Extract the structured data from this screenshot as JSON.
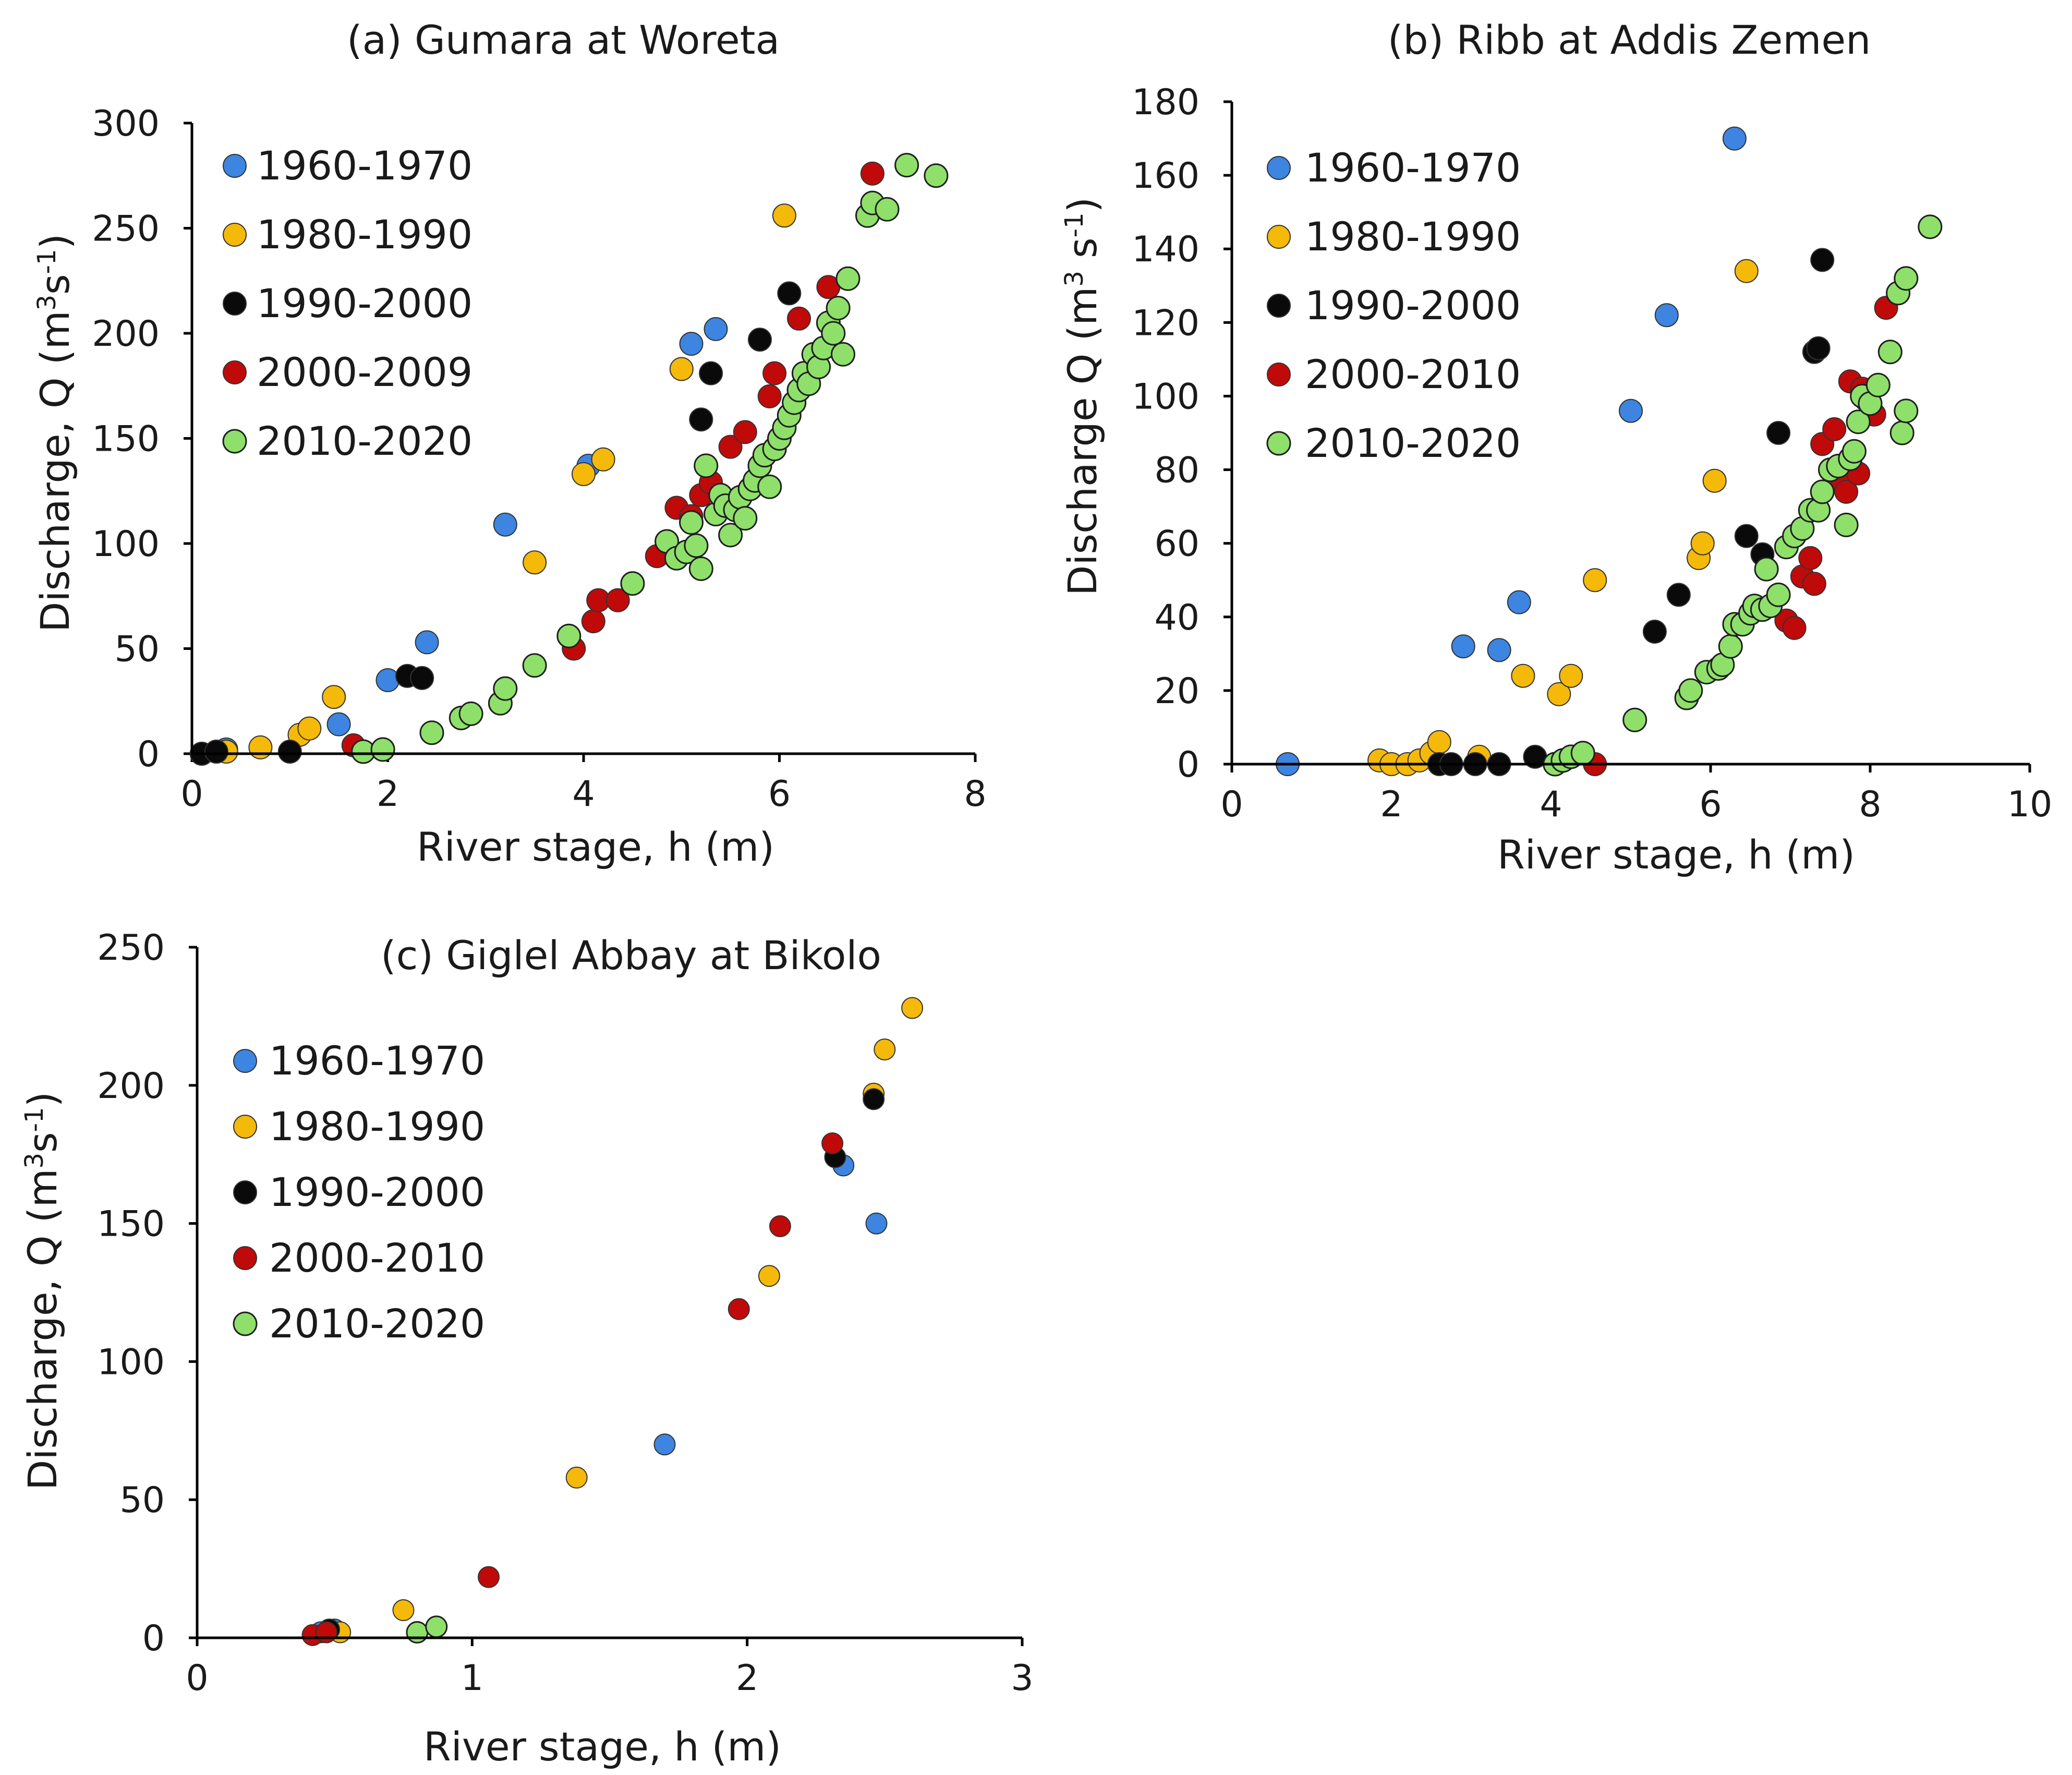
{
  "chart_data": [
    {
      "id": "a",
      "type": "scatter",
      "title": "(a) Gumara at Woreta",
      "xlabel": "River stage, h (m)",
      "ylabel": {
        "text": "Discharge, Q (m",
        "sup1": "3",
        "mid": "s",
        "sup2": "-1",
        "end": ")"
      },
      "xlim": [
        0,
        8
      ],
      "ylim": [
        0,
        300
      ],
      "xticks": [
        0,
        2,
        4,
        6,
        8
      ],
      "yticks": [
        0,
        50,
        100,
        150,
        200,
        250,
        300
      ],
      "legend_position": "top-left",
      "series": [
        {
          "name": "1960-1970",
          "color": "#3d85e0",
          "outlined": false,
          "points": [
            [
              0.1,
              0
            ],
            [
              0.25,
              1
            ],
            [
              0.35,
              2
            ],
            [
              1.5,
              14
            ],
            [
              2,
              35
            ],
            [
              2.4,
              53
            ],
            [
              3.2,
              109
            ],
            [
              4.05,
              137
            ],
            [
              5.1,
              195
            ],
            [
              5.35,
              202
            ]
          ]
        },
        {
          "name": "1980-1990",
          "color": "#f5b90a",
          "outlined": false,
          "points": [
            [
              0.35,
              1
            ],
            [
              0.7,
              3
            ],
            [
              1.1,
              9
            ],
            [
              1.2,
              12
            ],
            [
              1.45,
              27
            ],
            [
              3.5,
              91
            ],
            [
              4,
              133
            ],
            [
              4.2,
              140
            ],
            [
              5,
              183
            ],
            [
              6.05,
              256
            ]
          ]
        },
        {
          "name": "1990-2000",
          "color": "#0a0a0a",
          "outlined": false,
          "points": [
            [
              0.1,
              0
            ],
            [
              0.25,
              1
            ],
            [
              1,
              1
            ],
            [
              2.2,
              37
            ],
            [
              2.35,
              36
            ],
            [
              5.2,
              159
            ],
            [
              5.3,
              181
            ],
            [
              5.8,
              197
            ],
            [
              6.1,
              219
            ]
          ]
        },
        {
          "name": "2000-2009",
          "color": "#c00a0a",
          "outlined": false,
          "points": [
            [
              1.65,
              4
            ],
            [
              3.9,
              50
            ],
            [
              4.1,
              63
            ],
            [
              4.15,
              73
            ],
            [
              4.35,
              73
            ],
            [
              4.75,
              94
            ],
            [
              4.95,
              117
            ],
            [
              5.1,
              113
            ],
            [
              5.2,
              123
            ],
            [
              5.3,
              129
            ],
            [
              5.5,
              146
            ],
            [
              5.65,
              153
            ],
            [
              5.9,
              170
            ],
            [
              5.95,
              181
            ],
            [
              6.2,
              207
            ],
            [
              6.5,
              222
            ],
            [
              6.95,
              276
            ]
          ]
        },
        {
          "name": "2010-2020",
          "color": "#8ee06a",
          "outlined": true,
          "points": [
            [
              1.75,
              1
            ],
            [
              1.95,
              2
            ],
            [
              2.45,
              10
            ],
            [
              2.75,
              17
            ],
            [
              2.85,
              19
            ],
            [
              3.15,
              24
            ],
            [
              3.2,
              31
            ],
            [
              3.5,
              42
            ],
            [
              3.85,
              56
            ],
            [
              4.5,
              81
            ],
            [
              4.85,
              101
            ],
            [
              4.95,
              93
            ],
            [
              5.05,
              96
            ],
            [
              5.1,
              110
            ],
            [
              5.15,
              99
            ],
            [
              5.2,
              88
            ],
            [
              5.25,
              137
            ],
            [
              5.35,
              114
            ],
            [
              5.4,
              123
            ],
            [
              5.45,
              118
            ],
            [
              5.5,
              104
            ],
            [
              5.55,
              116
            ],
            [
              5.6,
              122
            ],
            [
              5.65,
              112
            ],
            [
              5.7,
              126
            ],
            [
              5.75,
              130
            ],
            [
              5.8,
              137
            ],
            [
              5.85,
              142
            ],
            [
              5.9,
              127
            ],
            [
              5.95,
              145
            ],
            [
              6.0,
              150
            ],
            [
              6.05,
              155
            ],
            [
              6.1,
              161
            ],
            [
              6.15,
              167
            ],
            [
              6.2,
              173
            ],
            [
              6.25,
              181
            ],
            [
              6.3,
              176
            ],
            [
              6.35,
              190
            ],
            [
              6.4,
              184
            ],
            [
              6.45,
              193
            ],
            [
              6.5,
              205
            ],
            [
              6.55,
              200
            ],
            [
              6.6,
              212
            ],
            [
              6.65,
              190
            ],
            [
              6.7,
              226
            ],
            [
              6.9,
              256
            ],
            [
              6.95,
              262
            ],
            [
              7.1,
              259
            ],
            [
              7.3,
              280
            ],
            [
              7.6,
              275
            ]
          ]
        }
      ]
    },
    {
      "id": "b",
      "type": "scatter",
      "title": "(b) Ribb at Addis Zemen",
      "xlabel": "River stage, h (m)",
      "ylabel": {
        "text": "Discharge Q (m",
        "sup1": "3",
        "mid": " s",
        "sup2": "-1",
        "end": ")"
      },
      "xlim": [
        0,
        10
      ],
      "ylim": [
        0,
        180
      ],
      "xticks": [
        0,
        2,
        4,
        6,
        8,
        10
      ],
      "yticks": [
        0,
        20,
        40,
        60,
        80,
        100,
        120,
        140,
        160,
        180
      ],
      "legend_position": "top-left",
      "series": [
        {
          "name": "1960-1970",
          "color": "#3d85e0",
          "outlined": false,
          "points": [
            [
              0.7,
              0
            ],
            [
              2.9,
              32
            ],
            [
              3.35,
              31
            ],
            [
              3.6,
              44
            ],
            [
              5,
              96
            ],
            [
              5.45,
              122
            ],
            [
              6.3,
              170
            ]
          ]
        },
        {
          "name": "1980-1990",
          "color": "#f5b90a",
          "outlined": false,
          "points": [
            [
              1.85,
              1
            ],
            [
              2,
              0
            ],
            [
              2.2,
              0
            ],
            [
              2.35,
              1
            ],
            [
              2.5,
              3
            ],
            [
              2.6,
              6
            ],
            [
              3.1,
              2
            ],
            [
              3.65,
              24
            ],
            [
              4.1,
              19
            ],
            [
              4.25,
              24
            ],
            [
              4.55,
              50
            ],
            [
              5.85,
              56
            ],
            [
              5.9,
              60
            ],
            [
              6.05,
              77
            ],
            [
              6.45,
              134
            ]
          ]
        },
        {
          "name": "1990-2000",
          "color": "#0a0a0a",
          "outlined": false,
          "points": [
            [
              2.6,
              0
            ],
            [
              2.75,
              0
            ],
            [
              3.05,
              0
            ],
            [
              3.35,
              0
            ],
            [
              3.8,
              2
            ],
            [
              5.3,
              36
            ],
            [
              5.6,
              46
            ],
            [
              6.45,
              62
            ],
            [
              6.65,
              57
            ],
            [
              6.85,
              90
            ],
            [
              7.3,
              112
            ],
            [
              7.35,
              113
            ],
            [
              7.4,
              137
            ]
          ]
        },
        {
          "name": "2000-2010",
          "color": "#c00a0a",
          "outlined": false,
          "points": [
            [
              4.55,
              0
            ],
            [
              6.95,
              39
            ],
            [
              7.05,
              37
            ],
            [
              7.15,
              51
            ],
            [
              7.25,
              56
            ],
            [
              7.3,
              49
            ],
            [
              7.4,
              87
            ],
            [
              7.55,
              91
            ],
            [
              7.65,
              77
            ],
            [
              7.7,
              74
            ],
            [
              7.75,
              104
            ],
            [
              7.85,
              79
            ],
            [
              7.9,
              102
            ],
            [
              7.95,
              99
            ],
            [
              8.05,
              95
            ],
            [
              8.2,
              124
            ]
          ]
        },
        {
          "name": "2010-2020",
          "color": "#8ee06a",
          "outlined": true,
          "points": [
            [
              4.05,
              0
            ],
            [
              4.15,
              1
            ],
            [
              4.25,
              2
            ],
            [
              4.4,
              3
            ],
            [
              5.05,
              12
            ],
            [
              5.7,
              18
            ],
            [
              5.75,
              20
            ],
            [
              5.95,
              25
            ],
            [
              6.1,
              26
            ],
            [
              6.15,
              27
            ],
            [
              6.25,
              32
            ],
            [
              6.3,
              38
            ],
            [
              6.4,
              38
            ],
            [
              6.5,
              41
            ],
            [
              6.55,
              43
            ],
            [
              6.65,
              42
            ],
            [
              6.7,
              53
            ],
            [
              6.75,
              43
            ],
            [
              6.85,
              46
            ],
            [
              6.95,
              59
            ],
            [
              7.05,
              62
            ],
            [
              7.15,
              64
            ],
            [
              7.25,
              69
            ],
            [
              7.35,
              69
            ],
            [
              7.4,
              74
            ],
            [
              7.5,
              80
            ],
            [
              7.6,
              81
            ],
            [
              7.7,
              65
            ],
            [
              7.75,
              83
            ],
            [
              7.8,
              85
            ],
            [
              7.85,
              93
            ],
            [
              7.9,
              100
            ],
            [
              8.0,
              98
            ],
            [
              8.1,
              103
            ],
            [
              8.25,
              112
            ],
            [
              8.35,
              128
            ],
            [
              8.4,
              90
            ],
            [
              8.45,
              96
            ],
            [
              8.45,
              132
            ],
            [
              8.75,
              146
            ]
          ]
        }
      ]
    },
    {
      "id": "c",
      "type": "scatter",
      "title": "(c) Giglel Abbay at Bikolo",
      "xlabel": "River stage, h (m)",
      "ylabel": {
        "text": "Discharge, Q (m",
        "sup1": "3",
        "mid": "s",
        "sup2": "-1",
        "end": ")"
      },
      "xlim": [
        0,
        3
      ],
      "ylim": [
        0,
        250
      ],
      "xticks": [
        0,
        1,
        2,
        3
      ],
      "yticks": [
        0,
        50,
        100,
        150,
        200,
        250
      ],
      "legend_position": "top-left",
      "series": [
        {
          "name": "1960-1970",
          "color": "#3d85e0",
          "outlined": false,
          "points": [
            [
              0.45,
              2
            ],
            [
              0.5,
              3
            ],
            [
              1.7,
              70
            ],
            [
              2.35,
              171
            ],
            [
              2.47,
              150
            ]
          ]
        },
        {
          "name": "1980-1990",
          "color": "#f5b90a",
          "outlined": false,
          "points": [
            [
              0.52,
              2
            ],
            [
              0.75,
              10
            ],
            [
              1.38,
              58
            ],
            [
              2.08,
              131
            ],
            [
              2.46,
              197
            ],
            [
              2.5,
              213
            ],
            [
              2.6,
              228
            ]
          ]
        },
        {
          "name": "1990-2000",
          "color": "#0a0a0a",
          "outlined": false,
          "points": [
            [
              0.48,
              3
            ],
            [
              2.32,
              174
            ],
            [
              2.46,
              195
            ]
          ]
        },
        {
          "name": "2000-2010",
          "color": "#c00a0a",
          "outlined": false,
          "points": [
            [
              0.42,
              1
            ],
            [
              0.47,
              2
            ],
            [
              1.06,
              22
            ],
            [
              1.97,
              119
            ],
            [
              2.12,
              149
            ],
            [
              2.31,
              179
            ]
          ]
        },
        {
          "name": "2010-2020",
          "color": "#8ee06a",
          "outlined": true,
          "points": [
            [
              0.8,
              2
            ],
            [
              0.87,
              4
            ]
          ]
        }
      ]
    }
  ]
}
